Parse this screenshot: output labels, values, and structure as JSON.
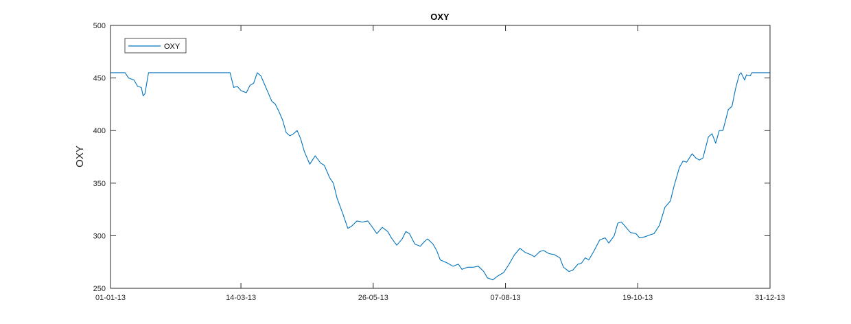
{
  "chart_data": {
    "type": "line",
    "title": "OXY",
    "xlabel": "",
    "ylabel": "OXY",
    "xlim": [
      "01-01-13",
      "31-12-13"
    ],
    "ylim": [
      250,
      500
    ],
    "x_ticks": [
      "01-01-13",
      "14-03-13",
      "26-05-13",
      "07-08-13",
      "19-10-13",
      "31-12-13"
    ],
    "y_ticks": [
      250,
      300,
      350,
      400,
      450,
      500
    ],
    "grid": false,
    "legend": {
      "position": "top-left",
      "entries": [
        "OXY"
      ]
    },
    "series": [
      {
        "name": "OXY",
        "color": "#0072BD",
        "points": [
          [
            "01-01-13",
            455
          ],
          [
            "09-01-13",
            455
          ],
          [
            "11-01-13",
            450
          ],
          [
            "14-01-13",
            448
          ],
          [
            "16-01-13",
            442
          ],
          [
            "18-01-13",
            441
          ],
          [
            "19-01-13",
            433
          ],
          [
            "20-01-13",
            435
          ],
          [
            "22-01-13",
            455
          ],
          [
            "30-01-13",
            455
          ],
          [
            "14-02-13",
            455
          ],
          [
            "01-03-13",
            455
          ],
          [
            "08-03-13",
            455
          ],
          [
            "10-03-13",
            441
          ],
          [
            "12-03-13",
            442
          ],
          [
            "14-03-13",
            438
          ],
          [
            "17-03-13",
            436
          ],
          [
            "19-03-13",
            443
          ],
          [
            "21-03-13",
            445
          ],
          [
            "23-03-13",
            455
          ],
          [
            "25-03-13",
            452
          ],
          [
            "28-03-13",
            440
          ],
          [
            "31-03-13",
            428
          ],
          [
            "02-04-13",
            425
          ],
          [
            "04-04-13",
            418
          ],
          [
            "06-04-13",
            410
          ],
          [
            "08-04-13",
            398
          ],
          [
            "10-04-13",
            395
          ],
          [
            "12-04-13",
            397
          ],
          [
            "14-04-13",
            400
          ],
          [
            "16-04-13",
            392
          ],
          [
            "18-04-13",
            380
          ],
          [
            "21-04-13",
            368
          ],
          [
            "24-04-13",
            376
          ],
          [
            "27-04-13",
            369
          ],
          [
            "29-04-13",
            367
          ],
          [
            "02-05-13",
            355
          ],
          [
            "04-05-13",
            350
          ],
          [
            "06-05-13",
            336
          ],
          [
            "09-05-13",
            322
          ],
          [
            "12-05-13",
            307
          ],
          [
            "14-05-13",
            309
          ],
          [
            "17-05-13",
            314
          ],
          [
            "20-05-13",
            313
          ],
          [
            "23-05-13",
            314
          ],
          [
            "26-05-13",
            307
          ],
          [
            "28-05-13",
            302
          ],
          [
            "31-05-13",
            308
          ],
          [
            "03-06-13",
            304
          ],
          [
            "05-06-13",
            298
          ],
          [
            "08-06-13",
            291
          ],
          [
            "11-06-13",
            297
          ],
          [
            "13-06-13",
            304
          ],
          [
            "15-06-13",
            302
          ],
          [
            "18-06-13",
            292
          ],
          [
            "21-06-13",
            290
          ],
          [
            "23-06-13",
            294
          ],
          [
            "25-06-13",
            297
          ],
          [
            "28-06-13",
            292
          ],
          [
            "30-06-13",
            286
          ],
          [
            "02-07-13",
            277
          ],
          [
            "06-07-13",
            274
          ],
          [
            "09-07-13",
            271
          ],
          [
            "12-07-13",
            273
          ],
          [
            "14-07-13",
            268
          ],
          [
            "17-07-13",
            270
          ],
          [
            "20-07-13",
            270
          ],
          [
            "23-07-13",
            271
          ],
          [
            "26-07-13",
            266
          ],
          [
            "28-07-13",
            260
          ],
          [
            "31-07-13",
            258
          ],
          [
            "03-08-13",
            262
          ],
          [
            "06-08-13",
            265
          ],
          [
            "09-08-13",
            273
          ],
          [
            "12-08-13",
            282
          ],
          [
            "15-08-13",
            288
          ],
          [
            "18-08-13",
            284
          ],
          [
            "21-08-13",
            282
          ],
          [
            "23-08-13",
            280
          ],
          [
            "26-08-13",
            285
          ],
          [
            "28-08-13",
            286
          ],
          [
            "31-08-13",
            283
          ],
          [
            "03-09-13",
            282
          ],
          [
            "06-09-13",
            279
          ],
          [
            "08-09-13",
            270
          ],
          [
            "11-09-13",
            266
          ],
          [
            "13-09-13",
            267
          ],
          [
            "16-09-13",
            273
          ],
          [
            "18-09-13",
            274
          ],
          [
            "20-09-13",
            279
          ],
          [
            "22-09-13",
            277
          ],
          [
            "25-09-13",
            286
          ],
          [
            "28-09-13",
            296
          ],
          [
            "01-10-13",
            298
          ],
          [
            "03-10-13",
            293
          ],
          [
            "06-10-13",
            300
          ],
          [
            "08-10-13",
            312
          ],
          [
            "10-10-13",
            313
          ],
          [
            "13-10-13",
            307
          ],
          [
            "15-10-13",
            303
          ],
          [
            "18-10-13",
            302
          ],
          [
            "20-10-13",
            298
          ],
          [
            "23-10-13",
            299
          ],
          [
            "26-10-13",
            301
          ],
          [
            "28-10-13",
            302
          ],
          [
            "31-10-13",
            310
          ],
          [
            "03-11-13",
            327
          ],
          [
            "06-11-13",
            333
          ],
          [
            "08-11-13",
            347
          ],
          [
            "11-11-13",
            365
          ],
          [
            "13-11-13",
            371
          ],
          [
            "15-11-13",
            370
          ],
          [
            "18-11-13",
            378
          ],
          [
            "20-11-13",
            374
          ],
          [
            "22-11-13",
            372
          ],
          [
            "24-11-13",
            374
          ],
          [
            "27-11-13",
            394
          ],
          [
            "29-11-13",
            397
          ],
          [
            "01-12-13",
            388
          ],
          [
            "03-12-13",
            400
          ],
          [
            "05-12-13",
            400
          ],
          [
            "08-12-13",
            420
          ],
          [
            "10-12-13",
            423
          ],
          [
            "12-12-13",
            440
          ],
          [
            "14-12-13",
            453
          ],
          [
            "15-12-13",
            455
          ],
          [
            "17-12-13",
            448
          ],
          [
            "18-12-13",
            453
          ],
          [
            "20-12-13",
            452
          ],
          [
            "21-12-13",
            455
          ],
          [
            "25-12-13",
            455
          ],
          [
            "31-12-13",
            455
          ]
        ]
      }
    ]
  }
}
